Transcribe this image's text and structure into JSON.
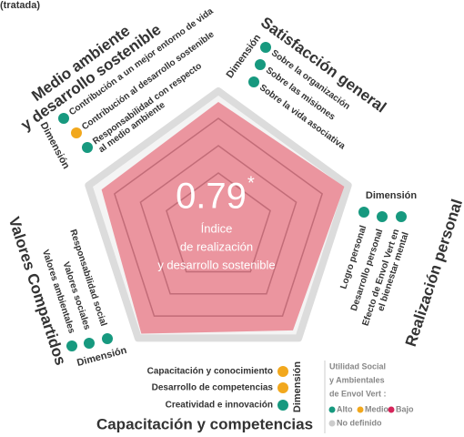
{
  "header_fragment": "(tratada)",
  "center": {
    "score": 0.79,
    "asterisk": "*",
    "label": [
      "Índice",
      "de realización",
      "y desarrollo sostenible"
    ]
  },
  "chart_data": {
    "type": "radar",
    "values": [
      0.92,
      0.97,
      0.93,
      0.96,
      0.9
    ],
    "rlim": [
      0,
      1
    ],
    "rticks": [
      0.4,
      0.6,
      0.8,
      1
    ],
    "color": "#e9848f"
  },
  "dimension_label": "Dimensión",
  "dimensions": [
    {
      "title": [
        "Medio ambiente",
        "y desarrollo sostenible"
      ],
      "items": [
        {
          "label": [
            "Contribución a un mejor entorno de vida"
          ],
          "color": "#17997f"
        },
        {
          "label": [
            "Contribución al desarrollo sostenible"
          ],
          "color": "#f2a81d"
        },
        {
          "label": [
            "Responsabilidad con respecto",
            "al medio ambiente"
          ],
          "color": "#17997f"
        }
      ]
    },
    {
      "title": [
        "Satisfacción general"
      ],
      "items": [
        {
          "label": [
            "Sobre la organización"
          ],
          "color": "#17997f"
        },
        {
          "label": [
            "Sobre las misiones"
          ],
          "color": "#17997f"
        },
        {
          "label": [
            "Sobre la vida asociativa"
          ],
          "color": "#17997f"
        }
      ]
    },
    {
      "title": [
        "Realización personal"
      ],
      "items": [
        {
          "label": [
            "Logro personal"
          ],
          "color": "#17997f"
        },
        {
          "label": [
            "Desarrollo personal"
          ],
          "color": "#17997f"
        },
        {
          "label": [
            "Efecto de Envol Vert en",
            "el bienestar mental"
          ],
          "color": "#17997f"
        }
      ]
    },
    {
      "title": [
        "Capacitación y competencias"
      ],
      "items": [
        {
          "label": [
            "Capacitación y conocimiento"
          ],
          "color": "#f2a81d"
        },
        {
          "label": [
            "Desarrollo de competencias"
          ],
          "color": "#f2a81d"
        },
        {
          "label": [
            "Creatividad e innovación"
          ],
          "color": "#17997f"
        }
      ]
    },
    {
      "title": [
        "Valores Compartidos"
      ],
      "items": [
        {
          "label": [
            "Responsabilidad social"
          ],
          "color": "#17997f"
        },
        {
          "label": [
            "Valores sociales"
          ],
          "color": "#17997f"
        },
        {
          "label": [
            "Valores ambientales"
          ],
          "color": "#17997f"
        }
      ]
    }
  ],
  "legend": {
    "title": [
      "Utilidad Social",
      "y Ambientales",
      "de Envol Vert :"
    ],
    "items": [
      {
        "label": "Alto",
        "color": "#17997f"
      },
      {
        "label": "Medio",
        "color": "#f2a81d"
      },
      {
        "label": "Bajo",
        "color": "#d6245a"
      },
      {
        "label": "No definido",
        "color": "#cccccc"
      }
    ]
  }
}
